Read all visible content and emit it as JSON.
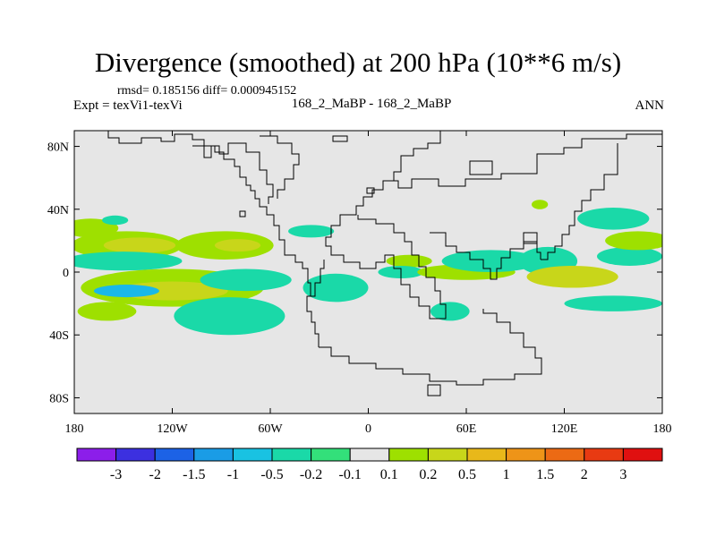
{
  "header": {
    "title": "Divergence (smoothed) at 200 hPa (10**6 m/s)",
    "stats": "rmsd= 0.185156 diff= 0.000945152",
    "expt": "Expt = texVi1-texVi",
    "case": "168_2_MaBP - 168_2_MaBP",
    "season": "ANN"
  },
  "colors": {
    "map_background": "#e6e6e6",
    "coastline": "#000000"
  },
  "chart_data": {
    "type": "heatmap",
    "title": "Divergence (smoothed) at 200 hPa (10**6 m/s)",
    "xlim": [
      -180,
      180
    ],
    "ylim": [
      -90,
      90
    ],
    "x_ticks": [
      {
        "value": -180,
        "label": "180"
      },
      {
        "value": -120,
        "label": "120W"
      },
      {
        "value": -60,
        "label": "60W"
      },
      {
        "value": 0,
        "label": "0"
      },
      {
        "value": 60,
        "label": "60E"
      },
      {
        "value": 120,
        "label": "120E"
      },
      {
        "value": 180,
        "label": "180"
      }
    ],
    "y_ticks": [
      {
        "value": 80,
        "label": "80N"
      },
      {
        "value": 40,
        "label": "40N"
      },
      {
        "value": 0,
        "label": "0"
      },
      {
        "value": -40,
        "label": "40S"
      },
      {
        "value": -80,
        "label": "80S"
      }
    ],
    "colorbar": {
      "levels": [
        "-3",
        "-2",
        "-1.5",
        "-1",
        "-0.5",
        "-0.2",
        "-0.1",
        "0.1",
        "0.2",
        "0.5",
        "1",
        "1.5",
        "2",
        "3"
      ],
      "colors": [
        "#8c1eea",
        "#3c30e0",
        "#1c62e6",
        "#1a9ce6",
        "#19c2e2",
        "#1ad9a8",
        "#33e07a",
        "#e6e6e6",
        "#9ee000",
        "#c8d61a",
        "#e8b81a",
        "#ee9418",
        "#ec6a14",
        "#e83a12",
        "#e01010"
      ]
    },
    "regions": [
      {
        "lon": -170,
        "lat": 28,
        "rx": 17,
        "ry": 6,
        "color": "#9ee000"
      },
      {
        "lon": -148,
        "lat": 17,
        "rx": 34,
        "ry": 9,
        "color": "#9ee000"
      },
      {
        "lon": -140,
        "lat": 17,
        "rx": 22,
        "ry": 5,
        "color": "#c8d61a"
      },
      {
        "lon": -88,
        "lat": 17,
        "rx": 30,
        "ry": 9,
        "color": "#9ee000"
      },
      {
        "lon": -80,
        "lat": 17,
        "rx": 14,
        "ry": 4,
        "color": "#c8d61a"
      },
      {
        "lon": -35,
        "lat": 26,
        "rx": 14,
        "ry": 4,
        "color": "#1ad9a8"
      },
      {
        "lon": -150,
        "lat": 7,
        "rx": 36,
        "ry": 6,
        "color": "#1ad9a8"
      },
      {
        "lon": -120,
        "lat": -10,
        "rx": 56,
        "ry": 12,
        "color": "#9ee000"
      },
      {
        "lon": -120,
        "lat": -12,
        "rx": 34,
        "ry": 6,
        "color": "#c8d61a"
      },
      {
        "lon": -148,
        "lat": -12,
        "rx": 20,
        "ry": 4,
        "color": "#1ab8e8"
      },
      {
        "lon": -75,
        "lat": -5,
        "rx": 28,
        "ry": 7,
        "color": "#1ad9a8"
      },
      {
        "lon": -20,
        "lat": -10,
        "rx": 20,
        "ry": 9,
        "color": "#1ad9a8"
      },
      {
        "lon": -85,
        "lat": -28,
        "rx": 34,
        "ry": 12,
        "color": "#1ad9a8"
      },
      {
        "lon": -160,
        "lat": -25,
        "rx": 18,
        "ry": 6,
        "color": "#9ee000"
      },
      {
        "lon": 25,
        "lat": 7,
        "rx": 14,
        "ry": 4,
        "color": "#9ee000"
      },
      {
        "lon": 20,
        "lat": 0,
        "rx": 14,
        "ry": 4,
        "color": "#1ad9a8"
      },
      {
        "lon": 60,
        "lat": 0,
        "rx": 30,
        "ry": 5,
        "color": "#9ee000"
      },
      {
        "lon": 75,
        "lat": 7,
        "rx": 30,
        "ry": 7,
        "color": "#1ad9a8"
      },
      {
        "lon": 110,
        "lat": 7,
        "rx": 18,
        "ry": 9,
        "color": "#1ad9a8"
      },
      {
        "lon": 125,
        "lat": -3,
        "rx": 28,
        "ry": 7,
        "color": "#c8d61a"
      },
      {
        "lon": 160,
        "lat": 10,
        "rx": 20,
        "ry": 6,
        "color": "#1ad9a8"
      },
      {
        "lon": 150,
        "lat": 34,
        "rx": 22,
        "ry": 7,
        "color": "#1ad9a8"
      },
      {
        "lon": 165,
        "lat": 20,
        "rx": 20,
        "ry": 6,
        "color": "#9ee000"
      },
      {
        "lon": 50,
        "lat": -25,
        "rx": 12,
        "ry": 6,
        "color": "#1ad9a8"
      },
      {
        "lon": 150,
        "lat": -20,
        "rx": 30,
        "ry": 5,
        "color": "#1ad9a8"
      },
      {
        "lon": 105,
        "lat": 43,
        "rx": 5,
        "ry": 3,
        "color": "#9ee000"
      },
      {
        "lon": -155,
        "lat": 33,
        "rx": 8,
        "ry": 3,
        "color": "#1ad9a8"
      }
    ]
  }
}
